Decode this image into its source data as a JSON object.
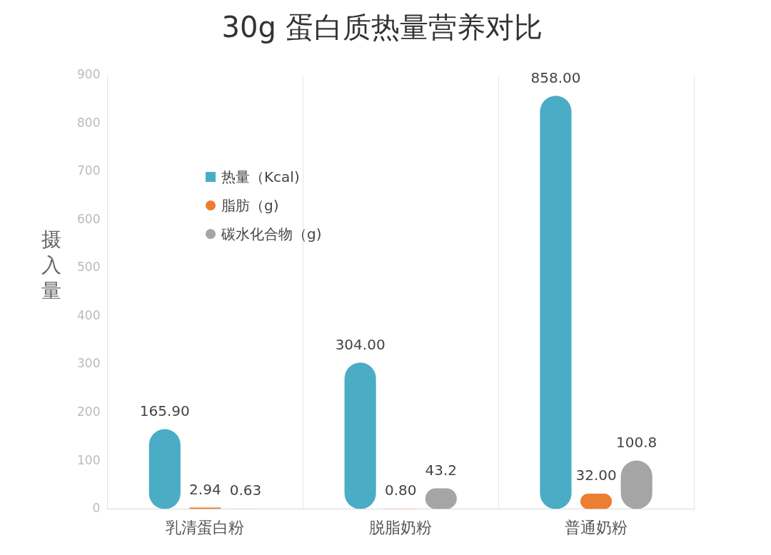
{
  "chart_data": {
    "type": "bar",
    "title": "30g 蛋白质热量营养对比",
    "ylabel": "摄入量",
    "categories": [
      "乳清蛋白粉",
      "脱脂奶粉",
      "普通奶粉"
    ],
    "series": [
      {
        "name": "热量（Kcal)",
        "color": "#4bacc6",
        "values": [
          165.9,
          304,
          858
        ],
        "value_labels": [
          "165.90",
          "304.00",
          "858.00"
        ]
      },
      {
        "name": "脂肪（g)",
        "color": "#ed7d31",
        "values": [
          2.94,
          0.8,
          32
        ],
        "value_labels": [
          "2.94",
          "0.80",
          "32.00"
        ]
      },
      {
        "name": "碳水化合物（g)",
        "color": "#a5a5a5",
        "values": [
          0.63,
          43.2,
          100.8
        ],
        "value_labels": [
          "0.63",
          "43.2",
          "100.8"
        ]
      }
    ],
    "ylim": [
      0,
      900
    ],
    "yticks": [
      0,
      100,
      200,
      300,
      400,
      500,
      600,
      700,
      800,
      900
    ],
    "grid": "x",
    "legend": "top left"
  }
}
